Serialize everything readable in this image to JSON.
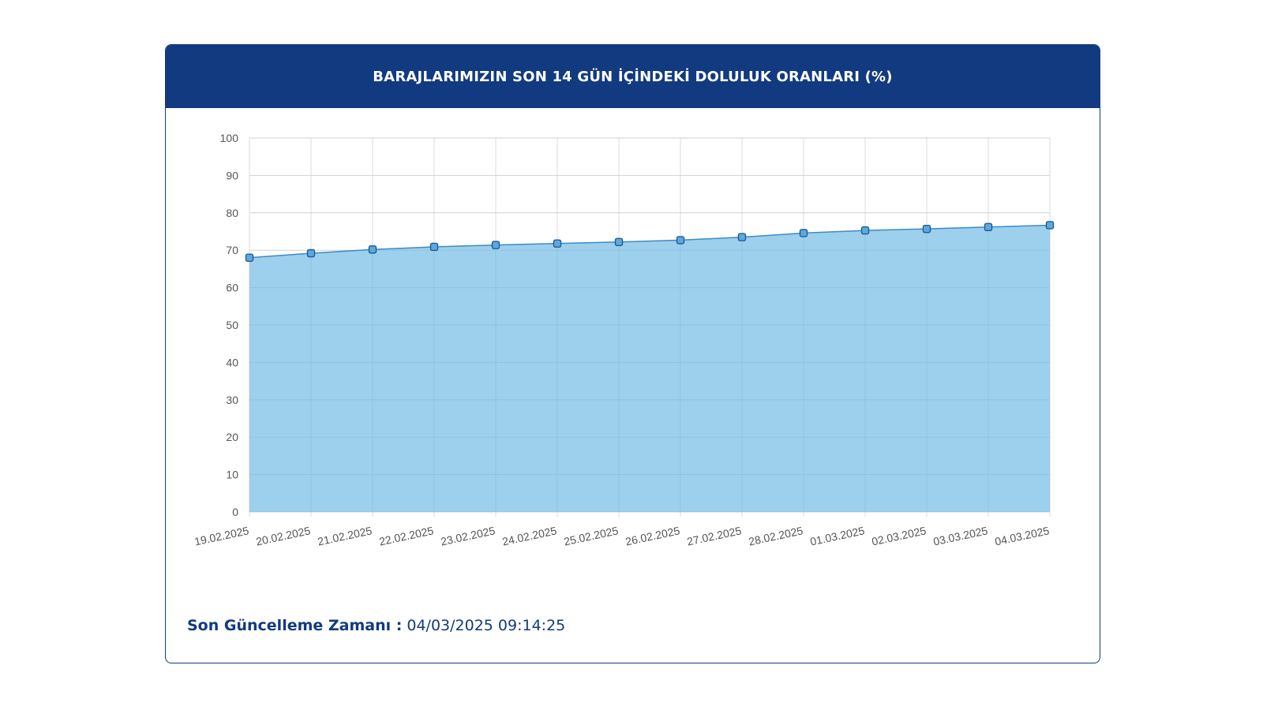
{
  "card": {
    "title": "BARAJLARIMIZIN SON 14 GÜN İÇİNDEKİ DOLULUK ORANLARI (%)"
  },
  "footer": {
    "label": "Son Güncelleme Zamanı :",
    "value": "04/03/2025 09:14:25"
  },
  "colors": {
    "header_bg": "#123a80",
    "area_fill": "#9dd0ec",
    "line": "#3a8cc8",
    "point_fill": "#5ea9dc",
    "point_stroke": "#1f5a96",
    "grid": "#dddddd"
  },
  "chart_data": {
    "type": "area",
    "title": "BARAJLARIMIZIN SON 14 GÜN İÇİNDEKİ DOLULUK ORANLARI (%)",
    "xlabel": "",
    "ylabel": "",
    "categories": [
      "19.02.2025",
      "20.02.2025",
      "21.02.2025",
      "22.02.2025",
      "23.02.2025",
      "24.02.2025",
      "25.02.2025",
      "26.02.2025",
      "27.02.2025",
      "28.02.2025",
      "01.03.2025",
      "02.03.2025",
      "03.03.2025",
      "04.03.2025"
    ],
    "series": [
      {
        "values": [
          68.0,
          69.2,
          70.2,
          70.9,
          71.4,
          71.8,
          72.2,
          72.7,
          73.5,
          74.6,
          75.3,
          75.7,
          76.2,
          76.7
        ]
      }
    ],
    "yticks": [
      0,
      10,
      20,
      30,
      40,
      50,
      60,
      70,
      80,
      90,
      100
    ],
    "ylim": [
      0,
      100
    ],
    "grid": true,
    "legend": "none"
  }
}
